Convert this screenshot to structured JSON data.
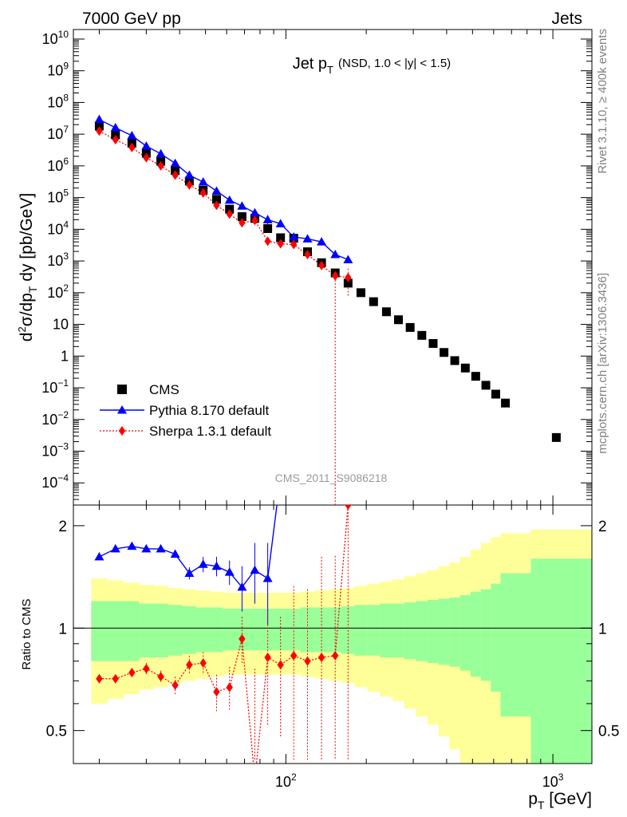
{
  "header": {
    "left": "7000 GeV pp",
    "right": "Jets"
  },
  "side_labels": {
    "rivet": "Rivet 3.1.10, ≥ 400k events",
    "mcplots": "mcplots.cern.ch [arXiv:1306.3436]"
  },
  "watermark": "CMS_2011_S9086218",
  "chart_data": {
    "type": "scatter",
    "title": "Jet p_T",
    "subtitle": "(NSD, 1.0 < |y| < 1.5)",
    "xlabel": "p_T [GeV]",
    "ylabel": "d²σ/dp_T dy [pb/GeV]",
    "ratio_ylabel": "Ratio to CMS",
    "x_scale": "log",
    "y_scale": "log",
    "xlim": [
      16,
      1400
    ],
    "ylim": [
      2e-05,
      20000000000
    ],
    "ratio_ylim": [
      0.4,
      2.3
    ],
    "legend_placement": "bottom-left",
    "x_tick_labels": [
      "10^2",
      "10^3"
    ],
    "y_tick_labels": [
      "10^10",
      "10^9",
      "10^8",
      "10^7",
      "10^6",
      "10^5",
      "10^4",
      "10^3",
      "10^2",
      "10",
      "1",
      "10^-1",
      "10^-2",
      "10^-3",
      "10^-4"
    ],
    "ratio_tick_labels": [
      "2",
      "1",
      "0.5"
    ],
    "x": [
      20,
      23,
      26.5,
      30,
      34,
      38.5,
      43.5,
      49,
      55,
      61.5,
      68.5,
      76.5,
      85.5,
      95.5,
      107,
      120.5,
      136,
      153,
      171,
      191,
      213,
      238,
      264,
      292,
      323,
      356,
      391,
      429,
      470,
      514,
      561,
      611,
      664,
      1030
    ],
    "series": [
      {
        "name": "CMS",
        "values": [
          18000000,
          9500000,
          5200000,
          2500000,
          1400000,
          720000,
          330000,
          170000,
          88000,
          43000,
          25000,
          22000,
          10500,
          5400,
          5200,
          1950,
          880,
          420,
          200,
          100,
          52,
          25,
          14,
          8,
          4.5,
          2.5,
          1.3,
          0.72,
          0.42,
          0.23,
          0.12,
          0.063,
          0.033,
          0.0027
        ],
        "uncertainty_1sigma_band": [
          0.2,
          0.2,
          0.2,
          0.18,
          0.18,
          0.17,
          0.16,
          0.15,
          0.15,
          0.14,
          0.14,
          0.14,
          0.14,
          0.14,
          0.14,
          0.15,
          0.15,
          0.15,
          0.16,
          0.17,
          0.17,
          0.18,
          0.18,
          0.19,
          0.2,
          0.21,
          0.22,
          0.23,
          0.25,
          0.28,
          0.3,
          0.35,
          0.45,
          0.6
        ],
        "uncertainty_2sigma_band": [
          0.4,
          0.38,
          0.36,
          0.34,
          0.33,
          0.31,
          0.3,
          0.29,
          0.28,
          0.27,
          0.27,
          0.27,
          0.27,
          0.27,
          0.27,
          0.28,
          0.29,
          0.3,
          0.31,
          0.33,
          0.35,
          0.37,
          0.39,
          0.42,
          0.45,
          0.48,
          0.52,
          0.56,
          0.62,
          0.7,
          0.78,
          0.85,
          0.9,
          0.95
        ]
      },
      {
        "name": "Pythia 8.170 default",
        "color": "#0000ff",
        "values": [
          29000000,
          16000000,
          9000000,
          4200000,
          2400000,
          1200000,
          510000,
          310000,
          160000,
          83000,
          54000,
          33000,
          20000,
          15000,
          5700,
          5000,
          4000,
          1600,
          1100
        ],
        "ratio": [
          1.62,
          1.71,
          1.74,
          1.71,
          1.71,
          1.65,
          1.45,
          1.54,
          1.52,
          1.46,
          1.32,
          1.48,
          1.4,
          2.8,
          3.0,
          3.2,
          3.5,
          3.8,
          4.0
        ],
        "ratio_err": [
          0.02,
          0.02,
          0.02,
          0.03,
          0.03,
          0.04,
          0.06,
          0.08,
          0.1,
          0.12,
          0.2,
          0.3,
          0.38,
          0.4,
          0.4,
          0.4,
          0.4,
          0.4,
          0.4
        ]
      },
      {
        "name": "Sherpa 1.3.1 default",
        "color": "#ff0000",
        "values": [
          12500000,
          6700000,
          3800000,
          1800000,
          1000000,
          510000,
          250000,
          140000,
          57000,
          30000,
          16000,
          19000,
          4200,
          3500,
          3300,
          1600,
          720,
          340,
          300
        ],
        "ratio": [
          0.71,
          0.71,
          0.74,
          0.76,
          0.72,
          0.68,
          0.78,
          0.79,
          0.65,
          0.67,
          0.93,
          0.36,
          0.82,
          0.78,
          0.83,
          0.8,
          0.82,
          0.83,
          2.3
        ],
        "ratio_err": [
          0.02,
          0.02,
          0.02,
          0.03,
          0.03,
          0.04,
          0.05,
          0.06,
          0.08,
          0.1,
          0.15,
          0.4,
          0.3,
          0.3,
          0.5,
          0.5,
          0.8,
          0.8,
          2
        ]
      }
    ]
  }
}
